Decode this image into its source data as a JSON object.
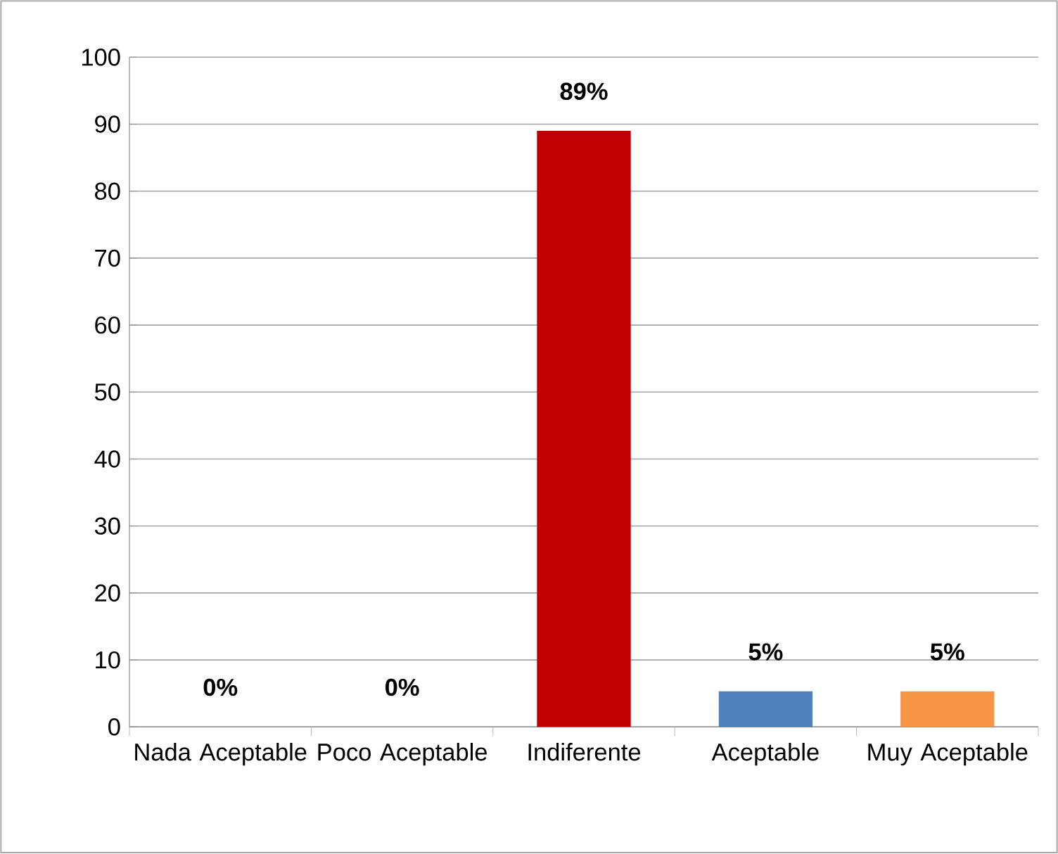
{
  "chart_data": {
    "type": "bar",
    "categories": [
      "Nada Aceptable",
      "Poco Aceptable",
      "Indiferente",
      "Aceptable",
      "Muy Aceptable"
    ],
    "values": [
      0,
      0,
      89,
      5.3,
      5.3
    ],
    "colors": [
      "#c00000",
      "#c00000",
      "#c00000",
      "#4f81bd",
      "#f79646"
    ],
    "value_labels": [
      "0%",
      "0%",
      "89%",
      "5%",
      "5%"
    ],
    "ylim": [
      0,
      100
    ],
    "yticks": [
      0,
      10,
      20,
      30,
      40,
      50,
      60,
      70,
      80,
      90,
      100
    ],
    "grid": "y"
  }
}
